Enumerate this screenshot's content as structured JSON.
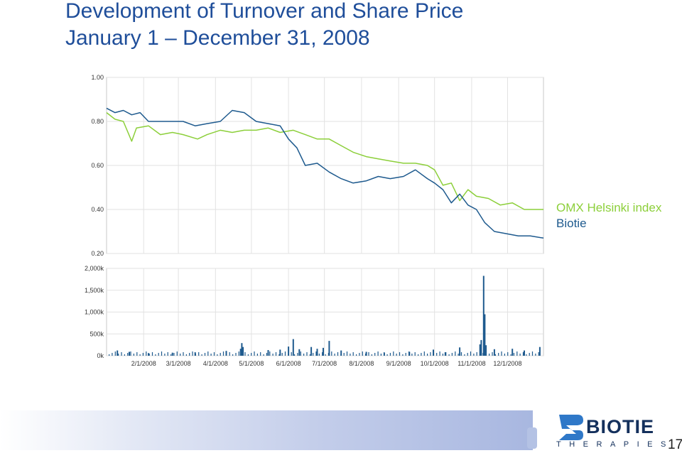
{
  "title_line1": "Development of Turnover and Share Price",
  "title_line2": "January 1 – December 31, 2008",
  "legend": [
    {
      "label": "OMX Helsinki index",
      "color": "#8ccf3a"
    },
    {
      "label": "Biotie",
      "color": "#1e5a8e"
    }
  ],
  "logo": {
    "word": "BIOTIE",
    "sub": "THERAPIES"
  },
  "page_number": "17",
  "chart_data": [
    {
      "type": "line",
      "ylim": [
        0.2,
        1.0
      ],
      "y_ticks": [
        "1.00",
        "0.80",
        "0.60",
        "0.40",
        "0.20"
      ],
      "xlim": [
        "2008-01-01",
        "2008-12-31"
      ],
      "grid": true,
      "series": [
        {
          "name": "OMX Helsinki index",
          "color": "#8ccf3a",
          "points": [
            [
              "2008-01-01",
              0.84
            ],
            [
              "2008-01-08",
              0.81
            ],
            [
              "2008-01-15",
              0.8
            ],
            [
              "2008-01-22",
              0.71
            ],
            [
              "2008-01-26",
              0.77
            ],
            [
              "2008-02-05",
              0.78
            ],
            [
              "2008-02-15",
              0.74
            ],
            [
              "2008-02-25",
              0.75
            ],
            [
              "2008-03-05",
              0.74
            ],
            [
              "2008-03-17",
              0.72
            ],
            [
              "2008-03-25",
              0.74
            ],
            [
              "2008-04-05",
              0.76
            ],
            [
              "2008-04-15",
              0.75
            ],
            [
              "2008-04-25",
              0.76
            ],
            [
              "2008-05-05",
              0.76
            ],
            [
              "2008-05-15",
              0.77
            ],
            [
              "2008-05-25",
              0.75
            ],
            [
              "2008-06-05",
              0.76
            ],
            [
              "2008-06-15",
              0.74
            ],
            [
              "2008-06-25",
              0.72
            ],
            [
              "2008-07-05",
              0.72
            ],
            [
              "2008-07-15",
              0.69
            ],
            [
              "2008-07-25",
              0.66
            ],
            [
              "2008-08-05",
              0.64
            ],
            [
              "2008-08-15",
              0.63
            ],
            [
              "2008-08-25",
              0.62
            ],
            [
              "2008-09-05",
              0.61
            ],
            [
              "2008-09-15",
              0.61
            ],
            [
              "2008-09-25",
              0.6
            ],
            [
              "2008-10-01",
              0.58
            ],
            [
              "2008-10-08",
              0.51
            ],
            [
              "2008-10-15",
              0.52
            ],
            [
              "2008-10-22",
              0.44
            ],
            [
              "2008-10-29",
              0.49
            ],
            [
              "2008-11-05",
              0.46
            ],
            [
              "2008-11-15",
              0.45
            ],
            [
              "2008-11-25",
              0.42
            ],
            [
              "2008-12-05",
              0.43
            ],
            [
              "2008-12-15",
              0.4
            ],
            [
              "2008-12-31",
              0.4
            ]
          ]
        },
        {
          "name": "Biotie",
          "color": "#1e5a8e",
          "points": [
            [
              "2008-01-01",
              0.86
            ],
            [
              "2008-01-08",
              0.84
            ],
            [
              "2008-01-15",
              0.85
            ],
            [
              "2008-01-22",
              0.83
            ],
            [
              "2008-01-29",
              0.84
            ],
            [
              "2008-02-05",
              0.8
            ],
            [
              "2008-02-15",
              0.8
            ],
            [
              "2008-02-25",
              0.8
            ],
            [
              "2008-03-05",
              0.8
            ],
            [
              "2008-03-15",
              0.78
            ],
            [
              "2008-03-25",
              0.79
            ],
            [
              "2008-04-05",
              0.8
            ],
            [
              "2008-04-15",
              0.85
            ],
            [
              "2008-04-25",
              0.84
            ],
            [
              "2008-05-05",
              0.8
            ],
            [
              "2008-05-15",
              0.79
            ],
            [
              "2008-05-25",
              0.78
            ],
            [
              "2008-06-01",
              0.72
            ],
            [
              "2008-06-08",
              0.68
            ],
            [
              "2008-06-15",
              0.6
            ],
            [
              "2008-06-25",
              0.61
            ],
            [
              "2008-07-05",
              0.57
            ],
            [
              "2008-07-15",
              0.54
            ],
            [
              "2008-07-25",
              0.52
            ],
            [
              "2008-08-05",
              0.53
            ],
            [
              "2008-08-15",
              0.55
            ],
            [
              "2008-08-25",
              0.54
            ],
            [
              "2008-09-05",
              0.55
            ],
            [
              "2008-09-15",
              0.58
            ],
            [
              "2008-09-25",
              0.54
            ],
            [
              "2008-10-01",
              0.52
            ],
            [
              "2008-10-08",
              0.49
            ],
            [
              "2008-10-15",
              0.43
            ],
            [
              "2008-10-22",
              0.47
            ],
            [
              "2008-10-29",
              0.42
            ],
            [
              "2008-11-05",
              0.4
            ],
            [
              "2008-11-12",
              0.34
            ],
            [
              "2008-11-20",
              0.3
            ],
            [
              "2008-11-30",
              0.29
            ],
            [
              "2008-12-10",
              0.28
            ],
            [
              "2008-12-20",
              0.28
            ],
            [
              "2008-12-31",
              0.27
            ]
          ]
        }
      ]
    },
    {
      "type": "bar",
      "ylim": [
        0,
        2000
      ],
      "y_ticks": [
        "2,000k",
        "1,500k",
        "1,000k",
        "500k",
        "0k"
      ],
      "x_ticks": [
        "2/1/2008",
        "3/1/2008",
        "4/1/2008",
        "5/1/2008",
        "6/1/2008",
        "7/1/2008",
        "8/1/2008",
        "9/1/2008",
        "10/1/2008",
        "11/1/2008",
        "12/1/2008"
      ],
      "xlim": [
        "2008-01-01",
        "2008-12-31"
      ],
      "grid": true,
      "series": [
        {
          "name": "Turnover",
          "color": "#1e5a8e",
          "bars": [
            [
              "2008-01-10",
              120
            ],
            [
              "2008-01-20",
              90
            ],
            [
              "2008-02-05",
              60
            ],
            [
              "2008-02-25",
              70
            ],
            [
              "2008-03-15",
              80
            ],
            [
              "2008-04-10",
              110
            ],
            [
              "2008-04-22",
              160
            ],
            [
              "2008-04-23",
              290
            ],
            [
              "2008-04-24",
              200
            ],
            [
              "2008-05-15",
              130
            ],
            [
              "2008-05-25",
              140
            ],
            [
              "2008-06-01",
              210
            ],
            [
              "2008-06-05",
              380
            ],
            [
              "2008-06-10",
              150
            ],
            [
              "2008-06-20",
              200
            ],
            [
              "2008-06-25",
              160
            ],
            [
              "2008-06-30",
              180
            ],
            [
              "2008-07-05",
              340
            ],
            [
              "2008-07-15",
              120
            ],
            [
              "2008-08-05",
              90
            ],
            [
              "2008-08-20",
              70
            ],
            [
              "2008-09-10",
              90
            ],
            [
              "2008-09-30",
              140
            ],
            [
              "2008-10-10",
              80
            ],
            [
              "2008-10-22",
              190
            ],
            [
              "2008-11-08",
              260
            ],
            [
              "2008-11-09",
              360
            ],
            [
              "2008-11-11",
              1830
            ],
            [
              "2008-11-12",
              950
            ],
            [
              "2008-11-13",
              240
            ],
            [
              "2008-11-20",
              150
            ],
            [
              "2008-12-05",
              160
            ],
            [
              "2008-12-15",
              120
            ],
            [
              "2008-12-28",
              200
            ]
          ]
        }
      ]
    }
  ]
}
